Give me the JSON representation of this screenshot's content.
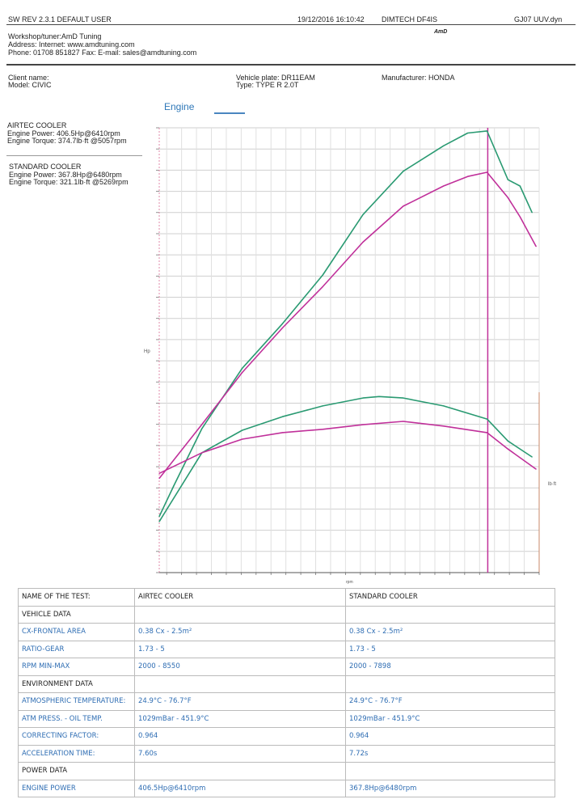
{
  "header": {
    "software": "SW REV 2.3.1   DEFAULT USER",
    "datetime": "19/12/2016 16:10:42",
    "dyno": "DIMTECH DF4IS",
    "file": "GJ07 UUV.dyn",
    "logo_text": "AmD"
  },
  "workshop": {
    "line1": "Workshop/tuner:AmD Tuning",
    "line2": "Address:  Internet: www.amdtuning.com",
    "line3": "Phone: 01708 851827 Fax:  E-mail: sales@amdtuning.com"
  },
  "vehicle": {
    "client": "Client name:",
    "model": "Model: CIVIC",
    "plate": "Vehicle plate: DR11EAM",
    "type": "Type: TYPE R 2.0T",
    "manufacturer": "Manufacturer: HONDA"
  },
  "tab": {
    "label": "Engine"
  },
  "legend": [
    {
      "name": "AIRTEC COOLER",
      "power": "Engine Power: 406.5Hp@6410rpm",
      "torque": "Engine Torque: 374.7lb·ft @5057rpm",
      "color": "#2a9a72"
    },
    {
      "name": "STANDARD COOLER",
      "power": "Engine Power: 367.8Hp@6480rpm",
      "torque": "Engine Torque: 321.1lb·ft @5269rpm",
      "color": "#c0309a"
    }
  ],
  "chart_data": {
    "type": "line",
    "title": "",
    "xlabel": "rpm",
    "ylabel": "Hp",
    "y2label": "lb·ft",
    "xlim": [
      2000,
      7100
    ],
    "ylim": [
      0,
      420
    ],
    "y2lim": [
      0,
      950
    ],
    "grid": true,
    "marker_rpm": 6410,
    "series": [
      {
        "name": "AIRTEC COOLER",
        "kind": "power",
        "axis": "left",
        "color": "#2a9a72",
        "x": [
          2000,
          2195,
          2573,
          3114,
          3654,
          4195,
          4735,
          5276,
          5816,
          6141,
          6400,
          6681,
          6843,
          7005
        ],
        "y": [
          53,
          82,
          136,
          193,
          235,
          281,
          338,
          379,
          403,
          415,
          417,
          371,
          365,
          340
        ]
      },
      {
        "name": "STANDARD COOLER",
        "kind": "power",
        "axis": "left",
        "color": "#c0309a",
        "x": [
          2000,
          2573,
          3114,
          3654,
          4195,
          4735,
          5276,
          5816,
          6141,
          6400,
          6681,
          6843,
          7059
        ],
        "y": [
          89,
          140,
          189,
          231,
          270,
          312,
          346,
          365,
          374,
          378,
          354,
          336,
          308
        ]
      },
      {
        "name": "AIRTEC COOLER",
        "kind": "torque",
        "axis": "right",
        "color": "#2a9a72",
        "x": [
          2000,
          2573,
          3114,
          3654,
          4195,
          4735,
          4951,
          5276,
          5816,
          6400,
          6681,
          7005
        ],
        "y": [
          109,
          256,
          304,
          333,
          356,
          373,
          376,
          373,
          356,
          328,
          281,
          247
        ]
      },
      {
        "name": "STANDARD COOLER",
        "kind": "torque",
        "axis": "right",
        "color": "#c0309a",
        "x": [
          2000,
          2573,
          3114,
          3654,
          4195,
          4735,
          5276,
          5816,
          6400,
          6681,
          7059
        ],
        "y": [
          212,
          256,
          285,
          299,
          306,
          316,
          323,
          313,
          299,
          264,
          221
        ]
      }
    ]
  },
  "table": {
    "header": [
      "NAME OF THE TEST:",
      "AIRTEC COOLER",
      "STANDARD COOLER"
    ],
    "rows": [
      {
        "section": true,
        "label": "VEHICLE DATA",
        "a": "",
        "b": ""
      },
      {
        "label": "CX-FRONTAL AREA",
        "a": "0.38 Cx - 2.5m²",
        "b": "0.38 Cx - 2.5m²"
      },
      {
        "label": "RATIO-GEAR",
        "a": "1.73 - 5",
        "b": "1.73 - 5"
      },
      {
        "label": "RPM MIN-MAX",
        "a": "2000 - 8550",
        "b": "2000 - 7898"
      },
      {
        "section": true,
        "label": "ENVIRONMENT DATA",
        "a": "",
        "b": ""
      },
      {
        "label": "ATMOSPHERIC TEMPERATURE:",
        "a": "24.9°C - 76.7°F",
        "b": "24.9°C - 76.7°F"
      },
      {
        "label": "ATM PRESS. - OIL TEMP.",
        "a": "1029mBar - 451.9°C",
        "b": "1029mBar - 451.9°C"
      },
      {
        "label": "CORRECTING FACTOR:",
        "a": "0.964",
        "b": "0.964"
      },
      {
        "label": "ACCELERATION TIME:",
        "a": "7.60s",
        "b": "7.72s"
      },
      {
        "section": true,
        "label": "POWER DATA",
        "a": "",
        "b": ""
      },
      {
        "label": "ENGINE POWER",
        "a": "406.5Hp@6410rpm",
        "b": "367.8Hp@6480rpm"
      }
    ]
  }
}
